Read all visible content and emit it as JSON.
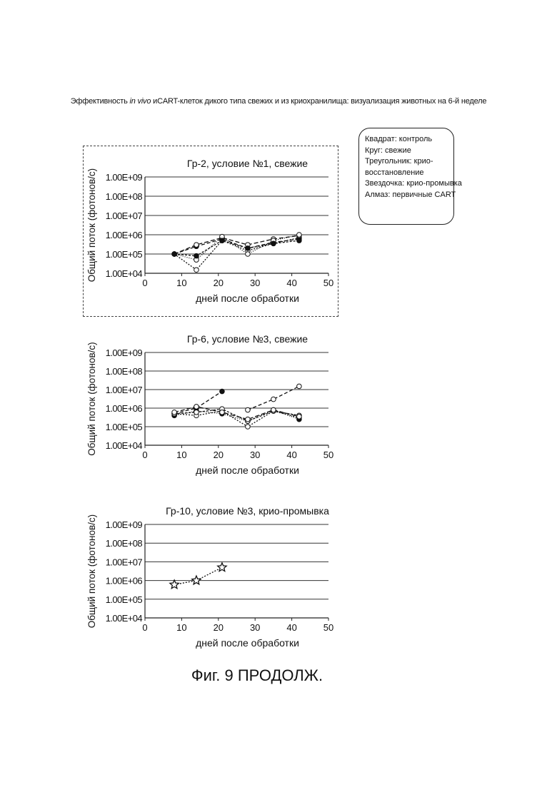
{
  "figure": {
    "title_prefix": "Эффективность ",
    "title_italic": "in vivo",
    "title_suffix": " иCART-клеток дикого типа свежих и из криохранилища: визуализация животных на 6-й неделе",
    "caption": "Фиг. 9 ПРОДОЛЖ."
  },
  "legend": {
    "lines": [
      "Квадрат: контроль",
      "Круг: свежие",
      "Треугольник: крио-",
      "восстановление",
      "Звездочка: крио-промывка",
      "Алмаз: первичные CART"
    ]
  },
  "colors": {
    "ink": "#111111",
    "grid": "#333333",
    "axis": "#222222"
  },
  "chart_data": [
    {
      "type": "line",
      "title": "Гр-2, условие №1, свежие",
      "xlabel": "дней после обработки",
      "ylabel": "Общий поток (фотонов/с)",
      "x_ticks": [
        0,
        10,
        20,
        30,
        40,
        50
      ],
      "y_ticks": [
        "1.00E+04",
        "1.00E+05",
        "1.00E+06",
        "1.00E+07",
        "1.00E+08",
        "1.00E+09"
      ],
      "xlim": [
        0,
        50
      ],
      "ylim": [
        10000,
        1000000000
      ],
      "y_scale": "log",
      "grid": true,
      "series": [
        {
          "marker": "circle-open",
          "dash": "2,2",
          "x": [
            8,
            14,
            21,
            28,
            35,
            42
          ],
          "y": [
            100000,
            15000,
            500000,
            150000,
            350000,
            700000
          ]
        },
        {
          "marker": "circle-filled",
          "dash": "5,3",
          "x": [
            8,
            14,
            21,
            28,
            35,
            42
          ],
          "y": [
            100000,
            250000,
            600000,
            200000,
            400000,
            600000
          ]
        },
        {
          "marker": "circle-open",
          "dash": "6,3",
          "x": [
            8,
            14,
            21,
            28,
            35,
            42
          ],
          "y": [
            100000,
            300000,
            700000,
            300000,
            600000,
            900000
          ]
        },
        {
          "marker": "circle-open",
          "dash": "1,2",
          "x": [
            8,
            14,
            21,
            28,
            35,
            42
          ],
          "y": [
            100000,
            50000,
            800000,
            100000,
            500000,
            1000000
          ]
        },
        {
          "marker": "circle-filled",
          "dash": "3,2",
          "x": [
            8,
            14,
            21,
            28,
            35,
            42
          ],
          "y": [
            100000,
            80000,
            500000,
            200000,
            350000,
            500000
          ]
        }
      ]
    },
    {
      "type": "line",
      "title": "Гр-6, условие №3, свежие",
      "xlabel": "дней после обработки",
      "ylabel": "Общий поток (фотонов/с)",
      "x_ticks": [
        0,
        10,
        20,
        30,
        40,
        50
      ],
      "y_ticks": [
        "1.00E+04",
        "1.00E+05",
        "1.00E+06",
        "1.00E+07",
        "1.00E+08",
        "1.00E+09"
      ],
      "xlim": [
        0,
        50
      ],
      "ylim": [
        10000,
        1000000000
      ],
      "y_scale": "log",
      "grid": true,
      "series": [
        {
          "marker": "circle-filled",
          "dash": "5,3",
          "x": [
            8,
            14,
            21
          ],
          "y": [
            500000,
            1000000,
            8000000
          ]
        },
        {
          "marker": "circle-open",
          "dash": "5,3",
          "x": [
            28,
            35,
            42
          ],
          "y": [
            800000,
            3000000,
            15000000
          ]
        },
        {
          "marker": "circle-open",
          "dash": "2,2",
          "x": [
            8,
            14,
            21,
            28,
            35,
            42
          ],
          "y": [
            500000,
            400000,
            700000,
            100000,
            700000,
            300000
          ]
        },
        {
          "marker": "circle-filled",
          "dash": "1,2",
          "x": [
            8,
            14,
            21,
            28,
            35,
            42
          ],
          "y": [
            400000,
            700000,
            500000,
            200000,
            800000,
            250000
          ]
        },
        {
          "marker": "circle-open",
          "dash": "3,2",
          "x": [
            8,
            14,
            21,
            28,
            35,
            42
          ],
          "y": [
            500000,
            600000,
            900000,
            200000,
            700000,
            400000
          ]
        },
        {
          "marker": "circle-open",
          "dash": "6,3",
          "x": [
            8,
            14,
            21,
            28,
            35,
            42
          ],
          "y": [
            600000,
            1200000,
            600000,
            250000,
            800000,
            350000
          ]
        }
      ]
    },
    {
      "type": "line",
      "title": "Гр-10, условие №3, крио-промывка",
      "xlabel": "дней после обработки",
      "ylabel": "Общий поток (фотонов/с)",
      "x_ticks": [
        0,
        10,
        20,
        30,
        40,
        50
      ],
      "y_ticks": [
        "1.00E+04",
        "1.00E+05",
        "1.00E+06",
        "1.00E+07",
        "1.00E+08",
        "1.00E+09"
      ],
      "xlim": [
        0,
        50
      ],
      "ylim": [
        10000,
        1000000000
      ],
      "y_scale": "log",
      "grid": true,
      "series": [
        {
          "marker": "star-open",
          "dash": "2,2",
          "x": [
            8,
            14,
            21
          ],
          "y": [
            600000,
            1000000,
            5000000
          ]
        }
      ]
    }
  ]
}
